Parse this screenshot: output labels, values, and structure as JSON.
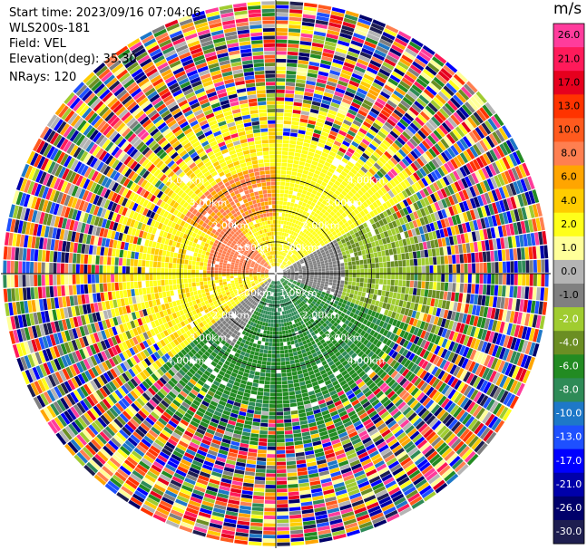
{
  "header": {
    "start_time": "Start time: 2023/09/16 07:04:06",
    "instrument": "WLS200s-181",
    "field": "Field: VEL",
    "elevation": "Elevation(deg): 35.30",
    "nrays": "NRays: 120"
  },
  "colorbar": {
    "unit": "m/s",
    "ticks": [
      "26.0",
      "21.0",
      "17.0",
      "13.0",
      "10.0",
      "8.0",
      "6.0",
      "4.0",
      "2.0",
      "1.0",
      "0.0",
      "-1.0",
      "-2.0",
      "-4.0",
      "-6.0",
      "-8.0",
      "-10.0",
      "-13.0",
      "-17.0",
      "-21.0",
      "-26.0",
      "-30.0"
    ],
    "colors": [
      "#ff3c9c",
      "#ff1a5a",
      "#e6001e",
      "#ff3300",
      "#ff5a1e",
      "#ff7f50",
      "#ffa500",
      "#ffcc00",
      "#ffff1a",
      "#ffff99",
      "#b4b4b4",
      "#808080",
      "#a0cc30",
      "#6b8e23",
      "#228b22",
      "#2e8b57",
      "#1e78c8",
      "#1e50ff",
      "#0000ff",
      "#0000aa",
      "#00006a",
      "#1e1e50"
    ]
  },
  "chart_data": {
    "type": "ppi",
    "field": "VEL",
    "nrays": 120,
    "range_rings_km": [
      1.0,
      2.0,
      3.0,
      4.0,
      5.0
    ],
    "range_ring_labels": [
      "1.00km",
      "2.00km",
      "3.00km",
      "4.00km",
      "5.00km"
    ],
    "spokes_deg": [
      0,
      30,
      60,
      90,
      120,
      150,
      180,
      210,
      240,
      270,
      300,
      330
    ],
    "max_range_km": 5.0,
    "velocity_range_ms": [
      -30.0,
      26.0
    ]
  }
}
